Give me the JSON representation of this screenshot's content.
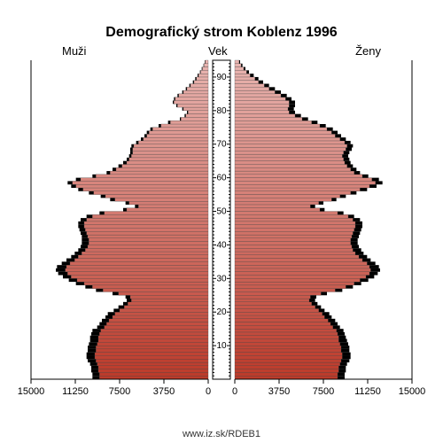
{
  "title": "Demografický strom Koblenz 1996",
  "labels": {
    "men": "Muži",
    "age": "Vek",
    "women": "Ženy"
  },
  "footer": "www.iz.sk/RDEB1",
  "chart": {
    "type": "population-pyramid",
    "background_color": "#ffffff",
    "back_bar_color": "#000000",
    "gradient_top_color": "#e8b4b0",
    "gradient_bottom_color": "#bc3a2a",
    "bar_stroke_color": "#505050",
    "axis_color": "#000000",
    "x_max": 15000,
    "x_ticks": [
      0,
      3750,
      7500,
      11250,
      15000
    ],
    "x_tick_labels_left": [
      "15000",
      "11250",
      "7500",
      "3750",
      "0"
    ],
    "x_tick_labels_right": [
      "0",
      "3750",
      "7500",
      "11250",
      "15000"
    ],
    "age_ticks": [
      10,
      20,
      30,
      40,
      50,
      60,
      70,
      80,
      90
    ],
    "age_min": 0,
    "age_max": 95,
    "title_fontsize": 16,
    "label_fontsize": 13,
    "tick_fontsize": 11,
    "men_back": [
      9800,
      9800,
      9900,
      9900,
      10000,
      10200,
      10300,
      10300,
      10200,
      10200,
      10100,
      10000,
      10000,
      9900,
      9800,
      9400,
      9200,
      9000,
      8700,
      8500,
      8000,
      7600,
      7200,
      6900,
      7000,
      8100,
      9500,
      10400,
      11200,
      11800,
      12300,
      12700,
      12900,
      12800,
      12400,
      12000,
      11600,
      11300,
      11000,
      10800,
      10700,
      10700,
      10700,
      10800,
      10900,
      11000,
      11000,
      10800,
      10300,
      9200,
      7200,
      6200,
      7000,
      8300,
      9100,
      10100,
      11000,
      11600,
      11900,
      11200,
      9800,
      8600,
      8100,
      7600,
      7200,
      6900,
      6700,
      6600,
      6600,
      6500,
      6100,
      5700,
      5400,
      5200,
      4900,
      4200,
      3400,
      2400,
      2000,
      1800,
      2200,
      2700,
      3000,
      2900,
      2600,
      2200,
      1900,
      1600,
      1300,
      1100,
      900,
      700,
      550,
      400,
      300
    ],
    "women_back": [
      9300,
      9300,
      9400,
      9400,
      9500,
      9700,
      9800,
      9800,
      9700,
      9700,
      9600,
      9500,
      9400,
      9300,
      9200,
      8900,
      8700,
      8500,
      8200,
      8000,
      7600,
      7300,
      7000,
      6800,
      6900,
      7800,
      9100,
      10000,
      10700,
      11300,
      11800,
      12100,
      12300,
      12200,
      11900,
      11500,
      11200,
      10900,
      10700,
      10500,
      10400,
      10400,
      10500,
      10600,
      10700,
      10800,
      10800,
      10600,
      10100,
      9200,
      7600,
      6800,
      7500,
      8600,
      9400,
      10300,
      11200,
      12000,
      12500,
      12200,
      11300,
      10600,
      10300,
      10000,
      9800,
      9700,
      9600,
      9700,
      9900,
      10000,
      9800,
      9400,
      9000,
      8700,
      8300,
      7700,
      7000,
      6200,
      5600,
      5100,
      5000,
      5100,
      5100,
      4800,
      4400,
      3900,
      3400,
      2900,
      2400,
      2000,
      1600,
      1200,
      900,
      650,
      450
    ],
    "men_front": [
      9200,
      9200,
      9300,
      9300,
      9400,
      9500,
      9600,
      9600,
      9500,
      9500,
      9400,
      9300,
      9300,
      9200,
      9100,
      8800,
      8600,
      8400,
      8100,
      7900,
      7500,
      7100,
      6800,
      6500,
      6600,
      7600,
      8900,
      9800,
      10500,
      11100,
      11600,
      11900,
      12100,
      12000,
      11700,
      11300,
      11000,
      10700,
      10400,
      10200,
      10100,
      10100,
      10200,
      10300,
      10400,
      10500,
      10500,
      10300,
      9800,
      8800,
      6900,
      5900,
      6700,
      7900,
      8700,
      9700,
      10600,
      11200,
      11500,
      10800,
      9500,
      8300,
      7800,
      7300,
      6900,
      6700,
      6500,
      6400,
      6400,
      6300,
      5900,
      5500,
      5200,
      5000,
      4700,
      4000,
      3200,
      2300,
      1900,
      1700,
      2100,
      2600,
      2900,
      2800,
      2500,
      2100,
      1800,
      1500,
      1200,
      1000,
      820,
      640,
      490,
      360,
      260
    ],
    "women_front": [
      8700,
      8700,
      8800,
      8800,
      8900,
      9000,
      9100,
      9100,
      9000,
      9000,
      8900,
      8800,
      8800,
      8700,
      8600,
      8300,
      8100,
      7900,
      7600,
      7400,
      7100,
      6800,
      6500,
      6300,
      6400,
      7300,
      8500,
      9400,
      10100,
      10600,
      11100,
      11400,
      11500,
      11400,
      11200,
      10800,
      10500,
      10200,
      10000,
      9900,
      9800,
      9800,
      9900,
      10000,
      10100,
      10200,
      10200,
      10000,
      9600,
      8700,
      7200,
      6400,
      7100,
      8200,
      8900,
      9800,
      10600,
      11400,
      11900,
      11600,
      10800,
      10100,
      9800,
      9500,
      9300,
      9200,
      9100,
      9200,
      9400,
      9500,
      9300,
      8900,
      8500,
      8200,
      7800,
      7200,
      6500,
      5700,
      5100,
      4600,
      4500,
      4600,
      4600,
      4300,
      3900,
      3400,
      2900,
      2500,
      2000,
      1700,
      1300,
      1000,
      750,
      530,
      370
    ]
  }
}
